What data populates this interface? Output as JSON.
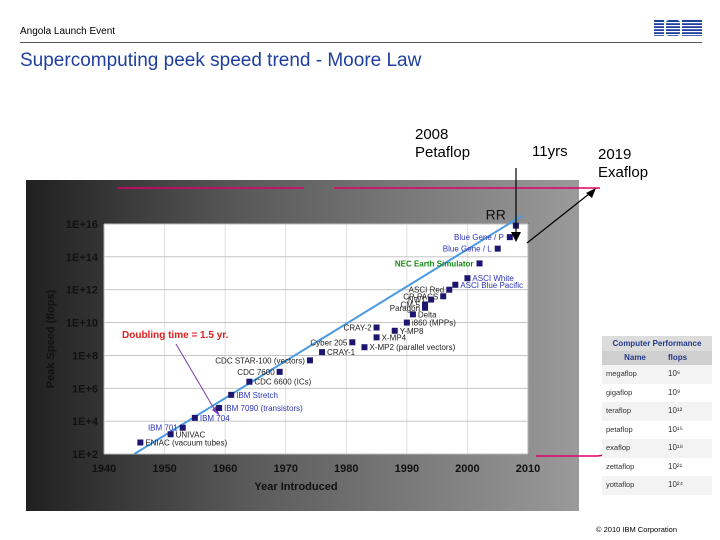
{
  "header": {
    "event": "Angola Launch Event",
    "logo": "IBM"
  },
  "slide_title": "Supercomputing peek speed trend - Moore Law",
  "annotations": {
    "a2008_line1": "2008",
    "a2008_line2": "Petaflop",
    "a11yrs": "11yrs",
    "a2019_line1": "2019",
    "a2019_line2": "Exaflop",
    "rr": "RR"
  },
  "footer": "© 2010 IBM Corporation",
  "colors": {
    "title": "#1f3f9f",
    "trend_line": "#4a9be0",
    "marker": "#1c1670",
    "callout": "#e0006a",
    "doubling": "#e02020",
    "label_blue": "#2c34b8"
  },
  "perf_table": {
    "title": "Computer Performance",
    "col_name": "Name",
    "col_flops": "flops",
    "rows": [
      {
        "name": "megaflop",
        "flops": "10⁶"
      },
      {
        "name": "gigaflop",
        "flops": "10⁹"
      },
      {
        "name": "teraflop",
        "flops": "10¹²"
      },
      {
        "name": "petaflop",
        "flops": "10¹⁵"
      },
      {
        "name": "exaflop",
        "flops": "10¹⁸"
      },
      {
        "name": "zettaflop",
        "flops": "10²¹"
      },
      {
        "name": "yottaflop",
        "flops": "10²⁴"
      }
    ]
  },
  "chart_data": {
    "type": "scatter",
    "xlabel": "Year Introduced",
    "ylabel": "Peak Speed (flops)",
    "x_ticks": [
      "1940",
      "1950",
      "1960",
      "1970",
      "1980",
      "1990",
      "2000",
      "2010"
    ],
    "y_ticks": [
      "1E+2",
      "1E+4",
      "1E+6",
      "1E+8",
      "1E+10",
      "1E+12",
      "1E+14",
      "1E+16"
    ],
    "xlim": [
      1940,
      2010
    ],
    "ylim_log10": [
      2,
      16
    ],
    "grid": true,
    "y_scale": "log",
    "doubling_label": "Doubling time = 1.5 yr.",
    "trend_line": {
      "x": [
        1945,
        2009
      ],
      "log10_y": [
        2,
        16.5
      ]
    },
    "points": [
      {
        "label": "ENIAC (vacuum tubes)",
        "x": 1946,
        "log10_y": 2.7,
        "color": "black"
      },
      {
        "label": "UNIVAC",
        "x": 1951,
        "log10_y": 3.2,
        "color": "black"
      },
      {
        "label": "IBM 701",
        "x": 1953,
        "log10_y": 3.6,
        "color": "blue"
      },
      {
        "label": "IBM 704",
        "x": 1955,
        "log10_y": 4.2,
        "color": "blue"
      },
      {
        "label": "IBM 7090 (transistors)",
        "x": 1959,
        "log10_y": 4.8,
        "color": "blue"
      },
      {
        "label": "IBM Stretch",
        "x": 1961,
        "log10_y": 5.6,
        "color": "blue"
      },
      {
        "label": "CDC 6600 (ICs)",
        "x": 1964,
        "log10_y": 6.4,
        "color": "black"
      },
      {
        "label": "CDC 7600",
        "x": 1969,
        "log10_y": 7.0,
        "color": "black"
      },
      {
        "label": "CDC STAR-100 (vectors)",
        "x": 1974,
        "log10_y": 7.7,
        "color": "black"
      },
      {
        "label": "CRAY-1",
        "x": 1976,
        "log10_y": 8.2,
        "color": "black"
      },
      {
        "label": "Cyber 205",
        "x": 1981,
        "log10_y": 8.8,
        "color": "black"
      },
      {
        "label": "X-MP2 (parallel vectors)",
        "x": 1983,
        "log10_y": 8.5,
        "color": "black"
      },
      {
        "label": "CRAY-2",
        "x": 1985,
        "log10_y": 9.7,
        "color": "black"
      },
      {
        "label": "X-MP4",
        "x": 1985,
        "log10_y": 9.1,
        "color": "black"
      },
      {
        "label": "Y-MP8",
        "x": 1988,
        "log10_y": 9.5,
        "color": "black"
      },
      {
        "label": "i860 (MPPs)",
        "x": 1990,
        "log10_y": 10.0,
        "color": "black"
      },
      {
        "label": "Delta",
        "x": 1991,
        "log10_y": 10.5,
        "color": "black"
      },
      {
        "label": "Paragon",
        "x": 1993,
        "log10_y": 10.9,
        "color": "black"
      },
      {
        "label": "CM-5",
        "x": 1993,
        "log10_y": 11.1,
        "color": "black"
      },
      {
        "label": "NWT",
        "x": 1994,
        "log10_y": 11.4,
        "color": "black"
      },
      {
        "label": "CP-PACS",
        "x": 1996,
        "log10_y": 11.6,
        "color": "black"
      },
      {
        "label": "ASCI Red",
        "x": 1997,
        "log10_y": 12.0,
        "color": "black"
      },
      {
        "label": "ASCI Blue Pacific",
        "x": 1998,
        "log10_y": 12.3,
        "color": "blue"
      },
      {
        "label": "ASCI White",
        "x": 2000,
        "log10_y": 12.7,
        "color": "blue"
      },
      {
        "label": "NEC Earth Simulator",
        "x": 2002,
        "log10_y": 13.6,
        "color": "green"
      },
      {
        "label": "Blue Gene / L",
        "x": 2005,
        "log10_y": 14.5,
        "color": "blue"
      },
      {
        "label": "Blue Gene / P",
        "x": 2007,
        "log10_y": 15.2,
        "color": "blue"
      },
      {
        "label": "RR",
        "x": 2008,
        "log10_y": 15.9,
        "color": "black"
      }
    ]
  }
}
